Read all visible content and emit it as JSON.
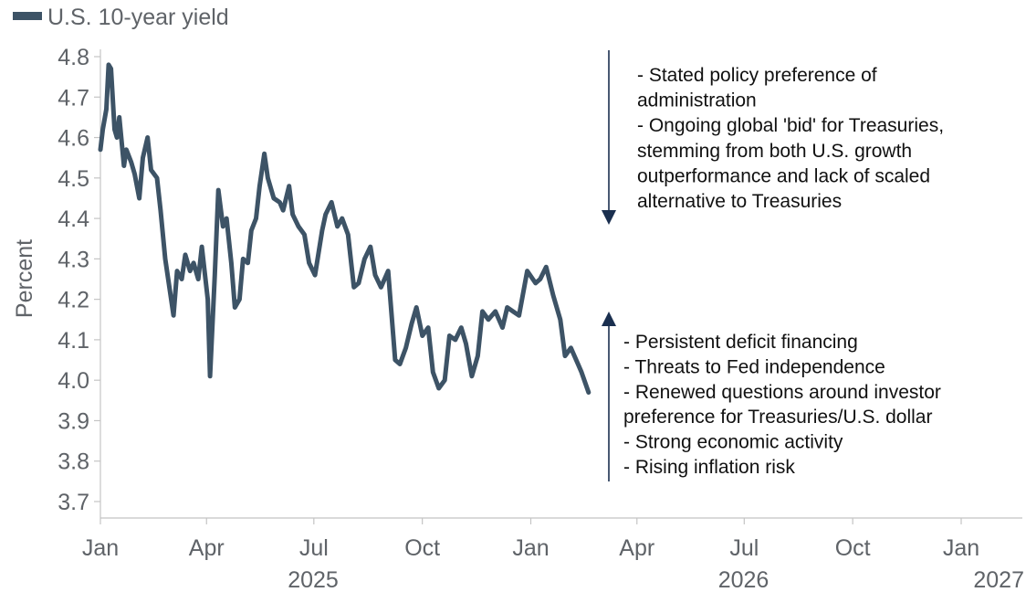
{
  "chart_data": {
    "type": "line",
    "legend": {
      "label": "U.S. 10-year yield",
      "position": "top-left"
    },
    "ylabel": "Percent",
    "xlabel": "",
    "ylim": [
      3.7,
      4.8
    ],
    "yticks": [
      "4.8",
      "4.7",
      "4.6",
      "4.5",
      "4.4",
      "4.3",
      "4.2",
      "4.1",
      "4.0",
      "3.9",
      "3.8",
      "3.7"
    ],
    "xlim": [
      "2025-01-01",
      "2027-01-01"
    ],
    "xticks": [
      {
        "date": "2025-01-01",
        "label": "Jan"
      },
      {
        "date": "2025-04-01",
        "label": "Apr"
      },
      {
        "date": "2025-07-01",
        "label": "Jul"
      },
      {
        "date": "2025-10-01",
        "label": "Oct"
      },
      {
        "date": "2026-01-01",
        "label": "Jan"
      },
      {
        "date": "2026-04-01",
        "label": "Apr"
      },
      {
        "date": "2026-07-01",
        "label": "Jul"
      },
      {
        "date": "2026-10-01",
        "label": "Oct"
      },
      {
        "date": "2027-01-01",
        "label": "Jan"
      }
    ],
    "year_labels": [
      {
        "date": "2025-01-01",
        "label": "2025"
      },
      {
        "date": "2026-01-01",
        "label": "2026"
      },
      {
        "date": "2027-01-01",
        "label": "2027"
      }
    ],
    "colors": {
      "series": "#3d5366",
      "arrow": "#1a2f4f",
      "text": "#5f6368",
      "axis": "#c4c4c4"
    },
    "series": [
      {
        "name": "U.S. 10-year yield",
        "x": [
          "2025-01-01",
          "2025-01-03",
          "2025-01-06",
          "2025-01-08",
          "2025-01-10",
          "2025-01-13",
          "2025-01-15",
          "2025-01-17",
          "2025-01-21",
          "2025-01-23",
          "2025-01-27",
          "2025-01-30",
          "2025-02-03",
          "2025-02-06",
          "2025-02-10",
          "2025-02-13",
          "2025-02-18",
          "2025-02-21",
          "2025-02-25",
          "2025-02-28",
          "2025-03-04",
          "2025-03-07",
          "2025-03-11",
          "2025-03-14",
          "2025-03-18",
          "2025-03-21",
          "2025-03-25",
          "2025-03-28",
          "2025-04-02",
          "2025-04-04",
          "2025-04-08",
          "2025-04-11",
          "2025-04-15",
          "2025-04-18",
          "2025-04-22",
          "2025-04-25",
          "2025-04-29",
          "2025-05-02",
          "2025-05-06",
          "2025-05-09",
          "2025-05-13",
          "2025-05-16",
          "2025-05-20",
          "2025-05-23",
          "2025-05-28",
          "2025-06-02",
          "2025-06-05",
          "2025-06-10",
          "2025-06-13",
          "2025-06-18",
          "2025-06-23",
          "2025-06-27",
          "2025-07-02",
          "2025-07-08",
          "2025-07-11",
          "2025-07-16",
          "2025-07-21",
          "2025-07-25",
          "2025-07-30",
          "2025-08-04",
          "2025-08-08",
          "2025-08-13",
          "2025-08-18",
          "2025-08-22",
          "2025-08-27",
          "2025-09-02",
          "2025-09-08",
          "2025-09-12",
          "2025-09-17",
          "2025-09-22",
          "2025-09-26",
          "2025-10-01",
          "2025-10-06",
          "2025-10-10",
          "2025-10-15",
          "2025-10-20",
          "2025-10-24",
          "2025-10-29",
          "2025-11-03",
          "2025-11-07",
          "2025-11-12",
          "2025-11-17",
          "2025-11-21",
          "2025-11-26",
          "2025-12-02",
          "2025-12-08",
          "2025-12-12",
          "2025-12-17",
          "2025-12-22",
          "2025-12-29",
          "2026-01-05",
          "2026-01-09",
          "2026-01-14",
          "2026-01-20",
          "2026-01-26",
          "2026-01-30",
          "2026-02-04",
          "2026-02-10",
          "2026-02-13",
          "2026-02-19"
        ],
        "y": [
          4.57,
          4.62,
          4.67,
          4.78,
          4.77,
          4.62,
          4.6,
          4.65,
          4.53,
          4.57,
          4.54,
          4.51,
          4.45,
          4.55,
          4.6,
          4.52,
          4.5,
          4.42,
          4.3,
          4.24,
          4.16,
          4.27,
          4.25,
          4.31,
          4.27,
          4.29,
          4.25,
          4.33,
          4.2,
          4.01,
          4.26,
          4.47,
          4.38,
          4.4,
          4.29,
          4.18,
          4.2,
          4.3,
          4.29,
          4.37,
          4.4,
          4.48,
          4.56,
          4.5,
          4.45,
          4.44,
          4.42,
          4.48,
          4.41,
          4.38,
          4.36,
          4.29,
          4.26,
          4.37,
          4.41,
          4.44,
          4.38,
          4.4,
          4.36,
          4.23,
          4.24,
          4.3,
          4.33,
          4.26,
          4.23,
          4.27,
          4.05,
          4.04,
          4.08,
          4.14,
          4.18,
          4.11,
          4.13,
          4.02,
          3.98,
          4.0,
          4.11,
          4.1,
          4.13,
          4.09,
          4.01,
          4.06,
          4.17,
          4.15,
          4.17,
          4.13,
          4.18,
          4.17,
          4.16,
          4.27,
          4.24,
          4.25,
          4.28,
          4.21,
          4.15,
          4.06,
          4.08,
          4.04,
          4.02,
          3.97
        ]
      }
    ],
    "annotations": [
      {
        "direction": "down",
        "lines": [
          "- Stated policy preference of",
          "administration",
          "- Ongoing global 'bid' for Treasuries,",
          "stemming from both U.S. growth",
          "outperformance and lack of scaled",
          "alternative to Treasuries"
        ]
      },
      {
        "direction": "up",
        "lines": [
          "- Persistent deficit financing",
          "- Threats to Fed independence",
          "- Renewed questions around investor",
          "preference for Treasuries/U.S. dollar",
          "- Strong economic activity",
          "- Rising inflation risk"
        ]
      }
    ]
  }
}
